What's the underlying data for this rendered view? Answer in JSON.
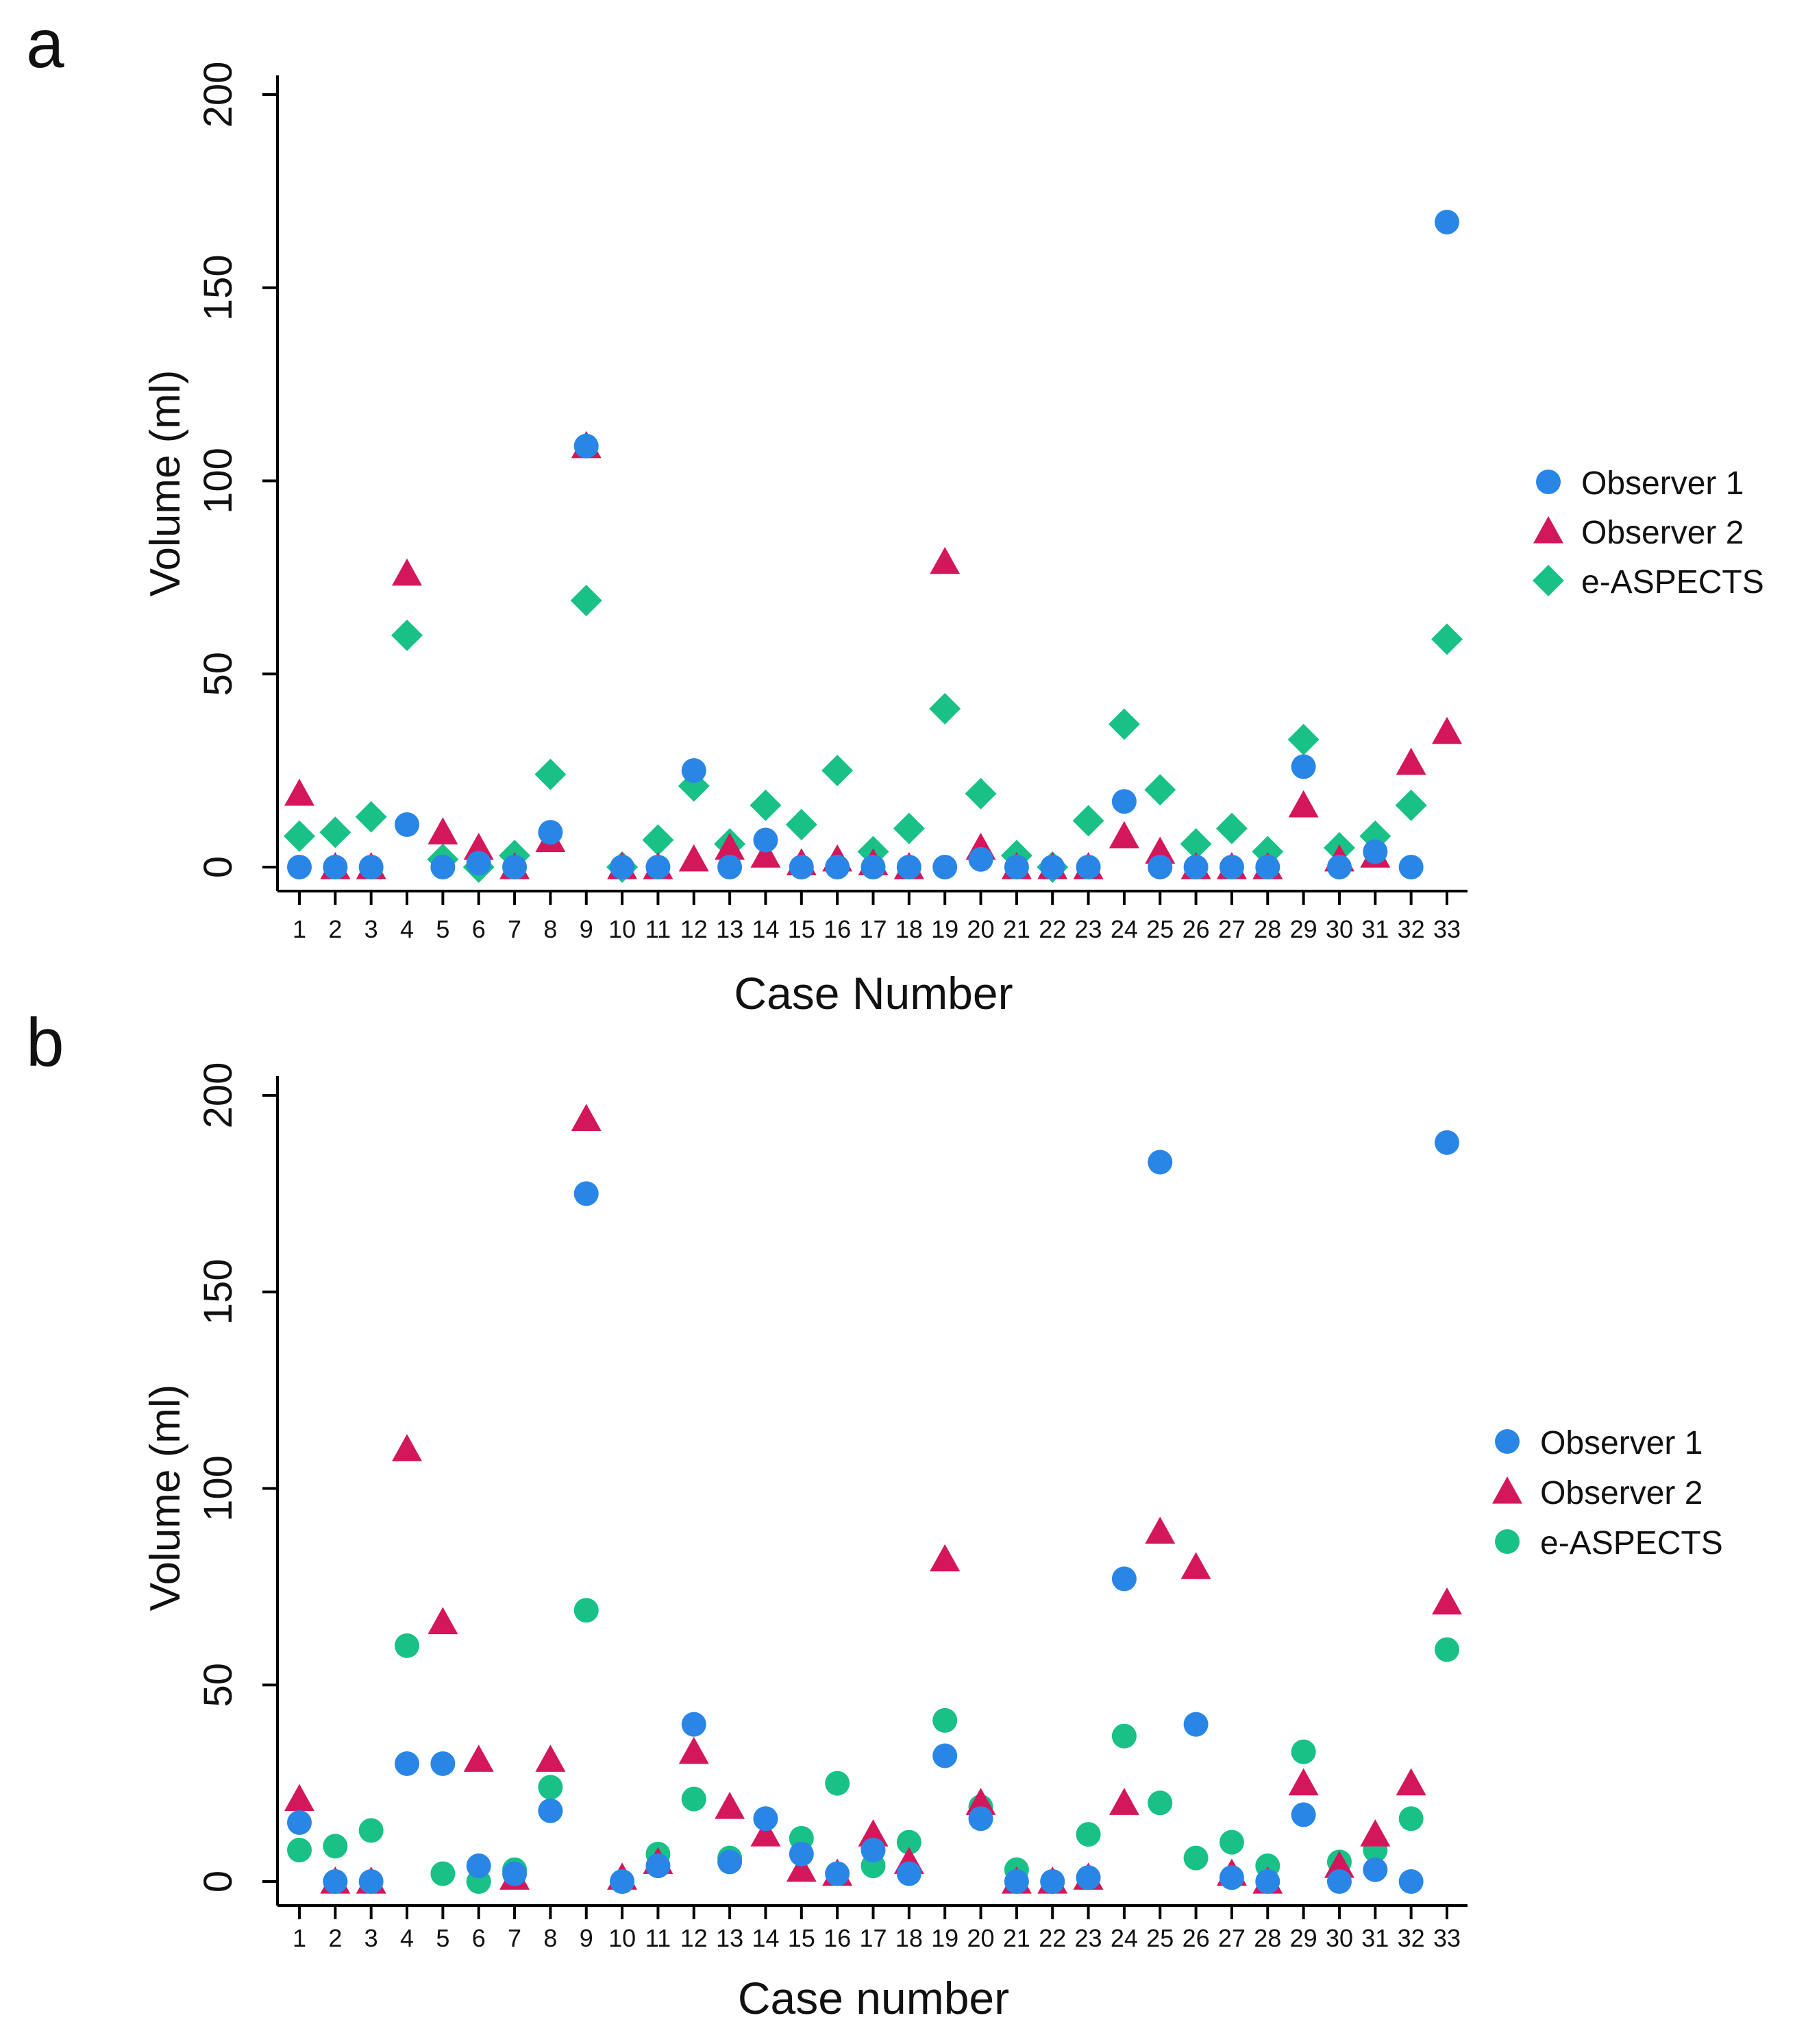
{
  "colors": {
    "observer1": "#2a86e6",
    "observer2": "#d4175b",
    "easpects": "#19c186",
    "axis": "#000000"
  },
  "chart_data": [
    {
      "panel_label": "a",
      "type": "scatter",
      "xlabel": "Case Number",
      "ylabel": "Volume (ml)",
      "ylim": [
        0,
        200
      ],
      "yticks": [
        0,
        50,
        100,
        150,
        200
      ],
      "categories": [
        "1",
        "2",
        "3",
        "4",
        "5",
        "6",
        "7",
        "8",
        "9",
        "10",
        "11",
        "12",
        "13",
        "14",
        "15",
        "16",
        "17",
        "18",
        "19",
        "20",
        "21",
        "22",
        "23",
        "24",
        "25",
        "26",
        "27",
        "28",
        "29",
        "30",
        "31",
        "32",
        "33"
      ],
      "legend_position": "right",
      "series": [
        {
          "name": "Observer 1",
          "marker": "circle",
          "color_key": "observer1",
          "values": [
            0,
            0,
            0,
            11,
            0,
            1,
            0,
            9,
            109,
            0,
            0,
            25,
            0,
            7,
            0,
            0,
            0,
            0,
            0,
            2,
            0,
            0,
            0,
            17,
            0,
            0,
            0,
            0,
            26,
            0,
            4,
            0,
            167
          ]
        },
        {
          "name": "Observer 2",
          "marker": "triangle",
          "color_key": "observer2",
          "values": [
            19,
            0,
            0,
            76,
            9,
            5,
            0,
            7,
            109,
            0,
            0,
            2,
            5,
            3,
            1,
            2,
            1,
            0,
            79,
            5,
            0,
            0,
            0,
            8,
            4,
            0,
            0,
            0,
            16,
            2,
            3,
            27,
            35
          ]
        },
        {
          "name": "e-ASPECTS",
          "marker": "diamond",
          "color_key": "easpects",
          "values": [
            8,
            9,
            13,
            60,
            2,
            0,
            3,
            24,
            69,
            0,
            7,
            21,
            6,
            16,
            11,
            25,
            4,
            10,
            41,
            19,
            3,
            0,
            12,
            37,
            20,
            6,
            10,
            4,
            33,
            5,
            8,
            16,
            59
          ]
        }
      ]
    },
    {
      "panel_label": "b",
      "type": "scatter",
      "xlabel": "Case number",
      "ylabel": "Volume (ml)",
      "ylim": [
        0,
        200
      ],
      "yticks": [
        0,
        50,
        100,
        150,
        200
      ],
      "categories": [
        "1",
        "2",
        "3",
        "4",
        "5",
        "6",
        "7",
        "8",
        "9",
        "10",
        "11",
        "12",
        "13",
        "14",
        "15",
        "16",
        "17",
        "18",
        "19",
        "20",
        "21",
        "22",
        "23",
        "24",
        "25",
        "26",
        "27",
        "28",
        "29",
        "30",
        "31",
        "32",
        "33"
      ],
      "legend_position": "right",
      "series": [
        {
          "name": "Observer 1",
          "marker": "circle",
          "color_key": "observer1",
          "values": [
            15,
            0,
            0,
            30,
            30,
            4,
            2,
            18,
            175,
            0,
            4,
            40,
            5,
            16,
            7,
            2,
            8,
            2,
            32,
            16,
            0,
            0,
            1,
            77,
            183,
            40,
            1,
            0,
            17,
            0,
            3,
            0,
            188
          ]
        },
        {
          "name": "Observer 2",
          "marker": "triangle",
          "color_key": "observer2",
          "values": [
            21,
            0,
            0,
            110,
            66,
            31,
            1,
            31,
            194,
            1,
            5,
            33,
            19,
            12,
            3,
            2,
            12,
            5,
            82,
            20,
            0,
            0,
            1,
            20,
            89,
            80,
            2,
            0,
            25,
            4,
            12,
            25,
            71
          ]
        },
        {
          "name": "e-ASPECTS",
          "marker": "circle",
          "color_key": "easpects",
          "values": [
            8,
            9,
            13,
            60,
            2,
            0,
            3,
            24,
            69,
            0,
            7,
            21,
            6,
            16,
            11,
            25,
            4,
            10,
            41,
            19,
            3,
            0,
            12,
            37,
            20,
            6,
            10,
            4,
            33,
            5,
            8,
            16,
            59
          ]
        }
      ]
    }
  ]
}
